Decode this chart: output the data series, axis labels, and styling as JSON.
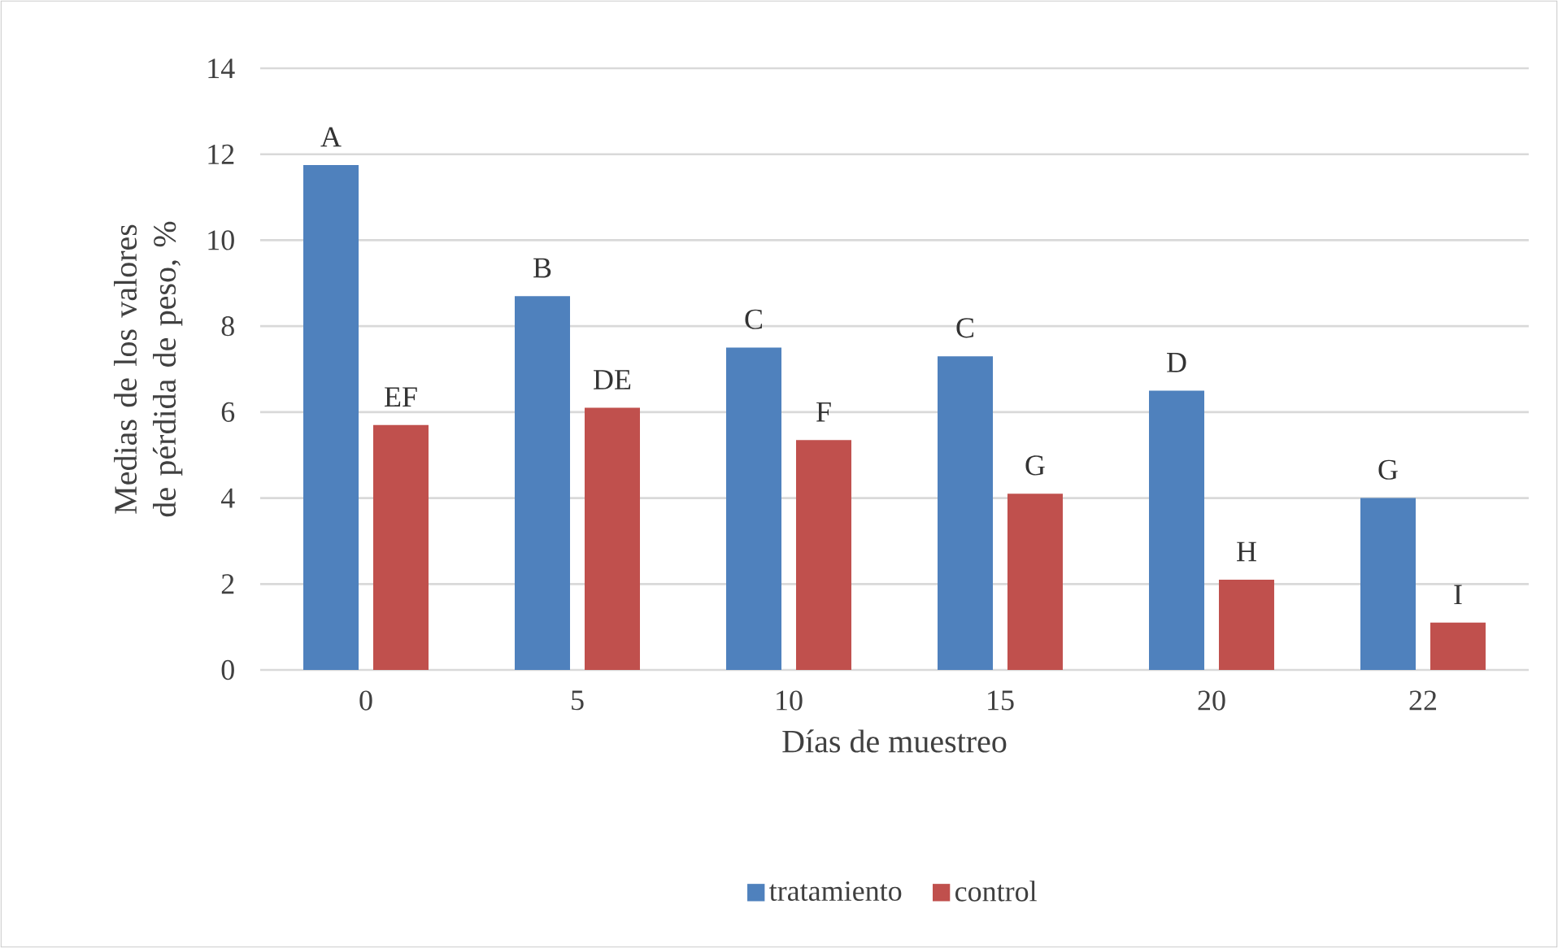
{
  "chart_data": {
    "type": "bar",
    "xlabel": "Días de muestreo",
    "ylabel": "Medias de los valores de pérdida de peso, %",
    "categories": [
      "0",
      "5",
      "10",
      "15",
      "20",
      "22"
    ],
    "series": [
      {
        "name": "tratamiento",
        "color": "#4f81bd",
        "values": [
          11.75,
          8.7,
          7.5,
          7.3,
          6.5,
          4.0
        ]
      },
      {
        "name": "control",
        "color": "#c0504d",
        "values": [
          5.7,
          6.1,
          5.35,
          4.1,
          2.1,
          1.1
        ]
      }
    ],
    "ylim": [
      0,
      14
    ],
    "yticks": [
      0,
      2,
      4,
      6,
      8,
      10,
      12,
      14
    ],
    "grid": "y",
    "legend": "bottom",
    "annotations": [
      {
        "text": "A",
        "x": "0",
        "y": 11.75
      },
      {
        "text": "EF",
        "x": "0",
        "y": 5.7
      },
      {
        "text": "B",
        "x": "5",
        "y": 8.7
      },
      {
        "text": "DE",
        "x": "5",
        "y": 6.1
      },
      {
        "text": "C",
        "x": "10",
        "y": 7.5
      },
      {
        "text": "F",
        "x": "10",
        "y": 5.35
      },
      {
        "text": "C",
        "x": "15",
        "y": 7.3
      },
      {
        "text": "G",
        "x": "15",
        "y": 4.1
      },
      {
        "text": "D",
        "x": "20",
        "y": 6.5
      },
      {
        "text": "H",
        "x": "20",
        "y": 2.1
      },
      {
        "text": "G",
        "x": "22",
        "y": 4.0
      },
      {
        "text": "I",
        "x": "22",
        "y": 1.1
      }
    ]
  }
}
